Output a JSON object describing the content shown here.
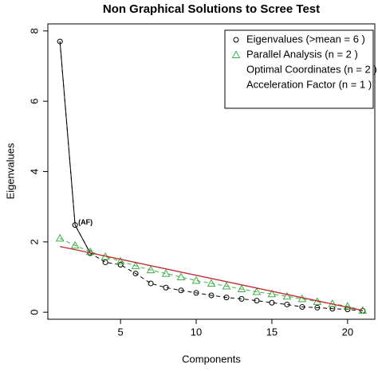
{
  "chart_data": {
    "type": "line",
    "title": "Non Graphical Solutions to Scree Test",
    "x_label": "Components",
    "y_label": "Eigenvalues",
    "x": [
      1,
      2,
      3,
      4,
      5,
      6,
      7,
      8,
      9,
      10,
      11,
      12,
      13,
      14,
      15,
      16,
      17,
      18,
      19,
      20,
      21
    ],
    "xlim": [
      0.2,
      21.8
    ],
    "xticks": [
      5,
      10,
      15,
      20
    ],
    "ylim": [
      -0.2,
      8.2
    ],
    "yticks": [
      0,
      2,
      4,
      6,
      8
    ],
    "series": [
      {
        "name": "Eigenvalues (>mean  =  6 )",
        "color": "#000000",
        "marker": "circle",
        "dash": true,
        "values": [
          7.7,
          2.48,
          1.68,
          1.42,
          1.35,
          1.1,
          0.82,
          0.7,
          0.62,
          0.55,
          0.48,
          0.42,
          0.38,
          0.33,
          0.27,
          0.22,
          0.15,
          0.13,
          0.1,
          0.08,
          0.04
        ]
      },
      {
        "name": "Parallel Analysis (n =  2 )",
        "color": "#3cb043",
        "marker": "triangle",
        "dash": true,
        "values": [
          2.1,
          1.9,
          1.72,
          1.58,
          1.45,
          1.32,
          1.2,
          1.1,
          1.0,
          0.9,
          0.82,
          0.74,
          0.66,
          0.58,
          0.52,
          0.45,
          0.38,
          0.3,
          0.24,
          0.17,
          0.05
        ]
      },
      {
        "name": "Optimal Coordinates (n =  2 )",
        "color": "#c0282d",
        "marker": "none",
        "dash": false,
        "x": [
          1,
          21
        ],
        "values": [
          1.87,
          0.05
        ]
      }
    ],
    "acceleration_factor": {
      "name": "Acceleration Factor (n =  1 )",
      "color": "#1a1a8c",
      "annotation": "(AF)",
      "annotation_color": "#7a2a8a",
      "component": 2
    }
  }
}
